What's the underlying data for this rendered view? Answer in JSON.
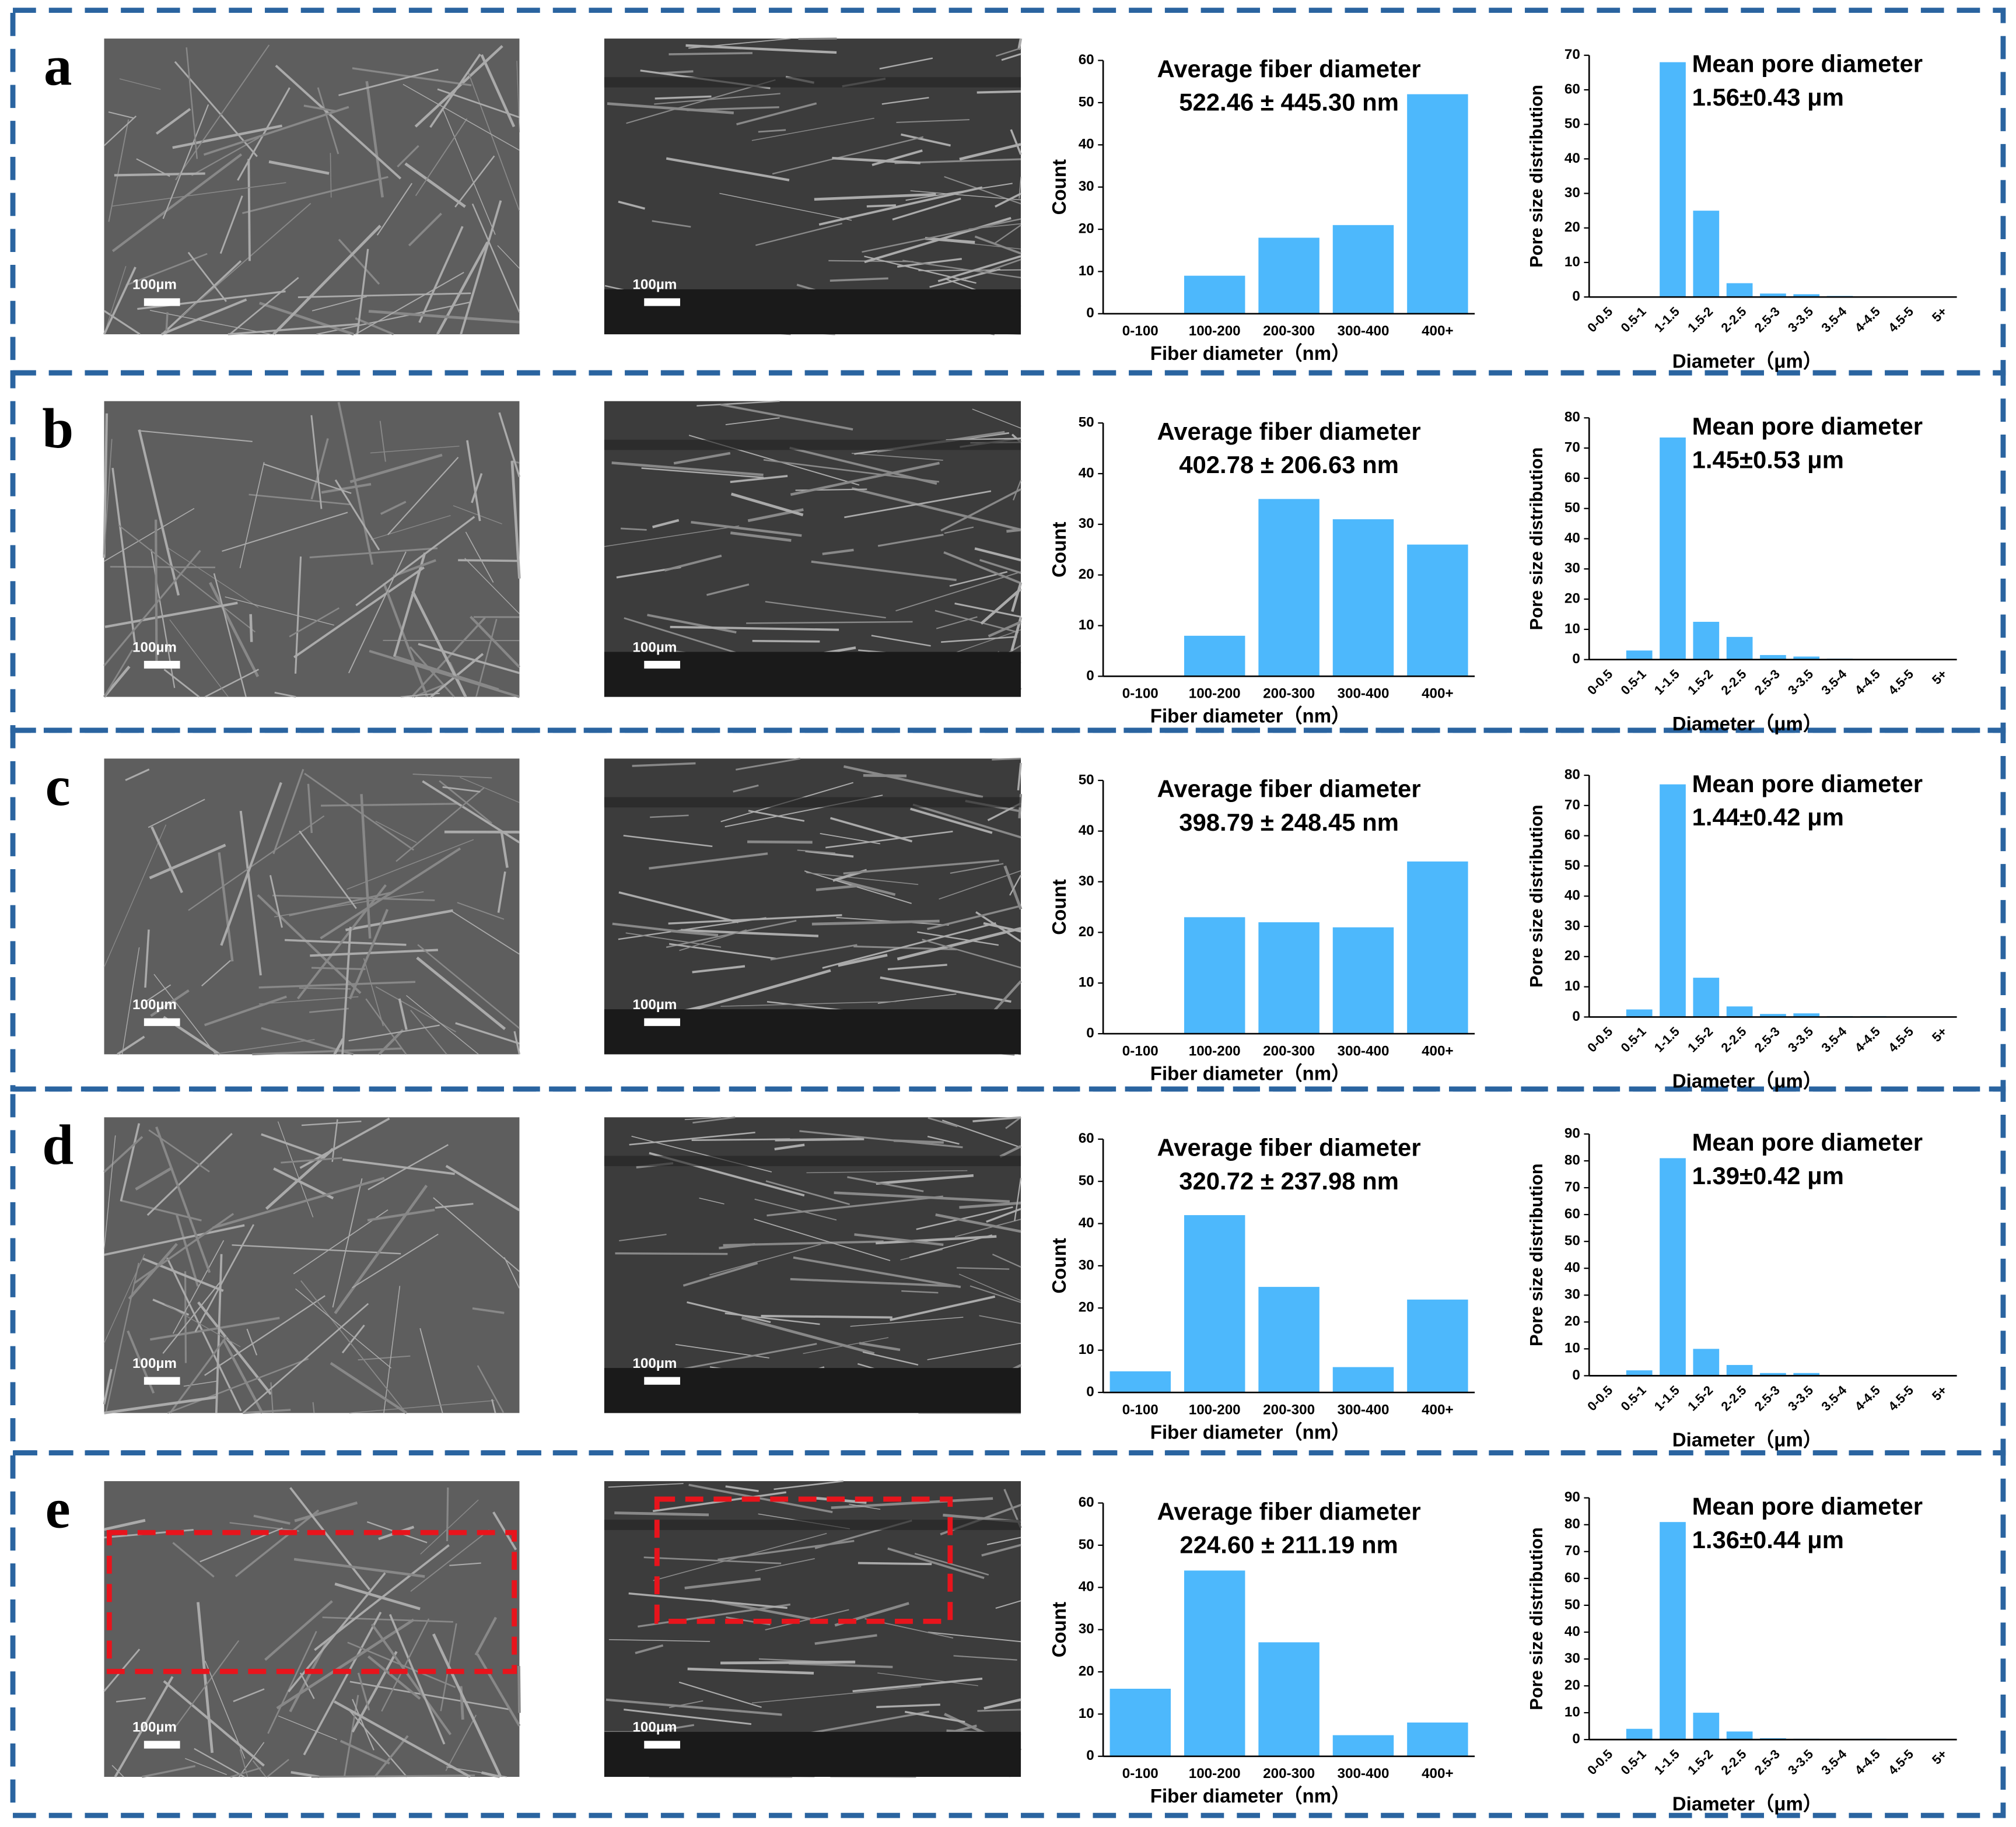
{
  "panels": [
    {
      "label": "a",
      "scale_bars": [
        "100µm",
        "100µm"
      ]
    },
    {
      "label": "b",
      "scale_bars": [
        "100µm",
        "100µm"
      ]
    },
    {
      "label": "c",
      "scale_bars": [
        "100µm",
        "100µm"
      ]
    },
    {
      "label": "d",
      "scale_bars": [
        "100µm",
        "100µm"
      ]
    },
    {
      "label": "e",
      "scale_bars": [
        "100µm",
        "100µm"
      ]
    }
  ],
  "chart_data": [
    {
      "type": "bar",
      "annotation": [
        "Average fiber diameter",
        "522.46 ± 445.30 nm"
      ],
      "x_label": "Fiber diameter（nm）",
      "y_label": "Count",
      "color": "#4db8fc",
      "categories": [
        "0-100",
        "100-200",
        "200-300",
        "300-400",
        "400+"
      ],
      "values": [
        0,
        9,
        18,
        21,
        52
      ],
      "ylim": [
        0,
        60
      ],
      "yticks": [
        0,
        10,
        20,
        30,
        40,
        50,
        60
      ],
      "grid": false
    },
    {
      "type": "bar",
      "annotation": [
        "Mean pore diameter",
        "1.56±0.43 μm"
      ],
      "x_label": "Diameter（μm）",
      "y_label": "Pore size distribution",
      "color": "#4db8fc",
      "categories": [
        "0-0.5",
        "0.5-1",
        "1-1.5",
        "1.5-2",
        "2-2.5",
        "2.5-3",
        "3-3.5",
        "3.5-4",
        "4-4.5",
        "4.5-5",
        "5+"
      ],
      "values": [
        0,
        0,
        68,
        25,
        4,
        1,
        0.8,
        0.3,
        0.2,
        0.1,
        0.1
      ],
      "ylim": [
        0,
        70
      ],
      "yticks": [
        0,
        10,
        20,
        30,
        40,
        50,
        60,
        70
      ],
      "grid": false
    },
    {
      "type": "bar",
      "annotation": [
        "Average fiber diameter",
        "402.78 ± 206.63 nm"
      ],
      "x_label": "Fiber diameter（nm）",
      "y_label": "Count",
      "color": "#4db8fc",
      "categories": [
        "0-100",
        "100-200",
        "200-300",
        "300-400",
        "400+"
      ],
      "values": [
        0,
        8,
        35,
        31,
        26
      ],
      "ylim": [
        0,
        50
      ],
      "yticks": [
        0,
        10,
        20,
        30,
        40,
        50
      ],
      "grid": false
    },
    {
      "type": "bar",
      "annotation": [
        "Mean pore diameter",
        "1.45±0.53 μm"
      ],
      "x_label": "Diameter（μm）",
      "y_label": "Pore size distribution",
      "color": "#4db8fc",
      "categories": [
        "0-0.5",
        "0.5-1",
        "1-1.5",
        "1.5-2",
        "2-2.5",
        "2.5-3",
        "3-3.5",
        "3.5-4",
        "4-4.5",
        "4.5-5",
        "5+"
      ],
      "values": [
        0,
        3,
        73.5,
        12.5,
        7.5,
        1.5,
        1,
        0.3,
        0.2,
        0.1,
        0.1
      ],
      "ylim": [
        0,
        80
      ],
      "yticks": [
        0,
        10,
        20,
        30,
        40,
        50,
        60,
        70,
        80
      ],
      "grid": false
    },
    {
      "type": "bar",
      "annotation": [
        "Average fiber diameter",
        "398.79 ± 248.45 nm"
      ],
      "x_label": "Fiber diameter（nm）",
      "y_label": "Count",
      "color": "#4db8fc",
      "categories": [
        "0-100",
        "100-200",
        "200-300",
        "300-400",
        "400+"
      ],
      "values": [
        0,
        23,
        22,
        21,
        34
      ],
      "ylim": [
        0,
        50
      ],
      "yticks": [
        0,
        10,
        20,
        30,
        40,
        50
      ],
      "grid": false
    },
    {
      "type": "bar",
      "annotation": [
        "Mean pore diameter",
        "1.44±0.42 μm"
      ],
      "x_label": "Diameter（μm）",
      "y_label": "Pore size distribution",
      "color": "#4db8fc",
      "categories": [
        "0-0.5",
        "0.5-1",
        "1-1.5",
        "1.5-2",
        "2-2.5",
        "2.5-3",
        "3-3.5",
        "3.5-4",
        "4-4.5",
        "4.5-5",
        "5+"
      ],
      "values": [
        0,
        2.5,
        77,
        13,
        3.5,
        1,
        1.2,
        0.3,
        0.3,
        0.1,
        0.1
      ],
      "ylim": [
        0,
        80
      ],
      "yticks": [
        0,
        10,
        20,
        30,
        40,
        50,
        60,
        70,
        80
      ],
      "grid": false
    },
    {
      "type": "bar",
      "annotation": [
        "Average fiber diameter",
        "320.72 ± 237.98 nm"
      ],
      "x_label": "Fiber diameter（nm）",
      "y_label": "Count",
      "color": "#4db8fc",
      "categories": [
        "0-100",
        "100-200",
        "200-300",
        "300-400",
        "400+"
      ],
      "values": [
        5,
        42,
        25,
        6,
        22
      ],
      "ylim": [
        0,
        60
      ],
      "yticks": [
        0,
        10,
        20,
        30,
        40,
        50,
        60
      ],
      "grid": false
    },
    {
      "type": "bar",
      "annotation": [
        "Mean pore diameter",
        "1.39±0.42 μm"
      ],
      "x_label": "Diameter（μm）",
      "y_label": "Pore size distribution",
      "color": "#4db8fc",
      "categories": [
        "0-0.5",
        "0.5-1",
        "1-1.5",
        "1.5-2",
        "2-2.5",
        "2.5-3",
        "3-3.5",
        "3.5-4",
        "4-4.5",
        "4.5-5",
        "5+"
      ],
      "values": [
        0,
        2,
        81,
        10,
        4,
        1,
        1,
        0.2,
        0.1,
        0.1,
        0.1
      ],
      "ylim": [
        0,
        90
      ],
      "yticks": [
        0,
        10,
        20,
        30,
        40,
        50,
        60,
        70,
        80,
        90
      ],
      "grid": false
    },
    {
      "type": "bar",
      "annotation": [
        "Average fiber diameter",
        "224.60 ± 211.19 nm"
      ],
      "x_label": "Fiber diameter（nm）",
      "y_label": "Count",
      "color": "#4db8fc",
      "categories": [
        "0-100",
        "100-200",
        "200-300",
        "300-400",
        "400+"
      ],
      "values": [
        16,
        44,
        27,
        5,
        8
      ],
      "ylim": [
        0,
        60
      ],
      "yticks": [
        0,
        10,
        20,
        30,
        40,
        50,
        60
      ],
      "grid": false
    },
    {
      "type": "bar",
      "annotation": [
        "Mean pore diameter",
        "1.36±0.44 μm"
      ],
      "x_label": "Diameter（μm）",
      "y_label": "Pore size distribution",
      "color": "#4db8fc",
      "categories": [
        "0-0.5",
        "0.5-1",
        "1-1.5",
        "1.5-2",
        "2-2.5",
        "2.5-3",
        "3-3.5",
        "3.5-4",
        "4-4.5",
        "4.5-5",
        "5+"
      ],
      "values": [
        0,
        4,
        81,
        10,
        3,
        0.5,
        0.3,
        0.2,
        0.3,
        0.1,
        0.1
      ],
      "ylim": [
        0,
        90
      ],
      "yticks": [
        0,
        10,
        20,
        30,
        40,
        50,
        60,
        70,
        80,
        90
      ],
      "grid": false
    }
  ]
}
